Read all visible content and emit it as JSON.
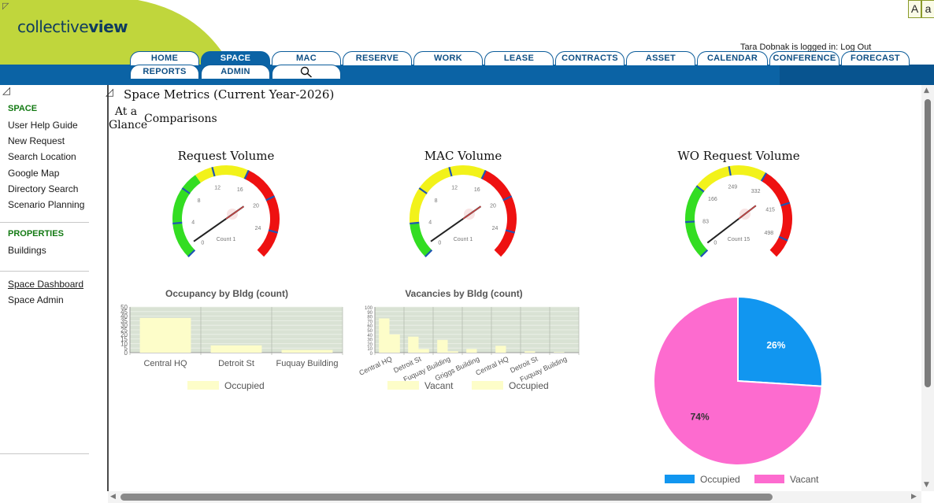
{
  "header": {
    "logo_light": "collective",
    "logo_bold": "view",
    "font_toggle": [
      "A",
      "a"
    ],
    "login_text": "Tara Dobnak is logged in:",
    "logout_label": "Log Out"
  },
  "nav": {
    "row1": [
      "HOME",
      "SPACE",
      "MAC",
      "RESERVE",
      "WORK",
      "LEASE",
      "CONTRACTS",
      "ASSET",
      "CALENDAR",
      "CONFERENCE",
      "FORECAST"
    ],
    "row2": [
      "REPORTS",
      "ADMIN"
    ],
    "active": "SPACE",
    "search_icon": "search-icon"
  },
  "sidebar": {
    "section1": "SPACE",
    "links1": [
      "User Help Guide",
      "New Request",
      "Search Location",
      "Google Map",
      "Directory Search",
      "Scenario Planning"
    ],
    "section2": "PROPERTIES",
    "links2": [
      "Buildings"
    ],
    "links3": [
      "Space Dashboard",
      "Space Admin"
    ]
  },
  "main": {
    "title": "Space Metrics (Current Year-2026)",
    "tabs": [
      "At a Glance",
      "Comparisons"
    ]
  },
  "gauges": [
    {
      "title": "Request Volume",
      "ticks": [
        "0",
        "4",
        "8",
        "12",
        "16",
        "20",
        "24"
      ],
      "max": 27,
      "value": 1,
      "readout": "Count 1",
      "bands": [
        {
          "from": 0,
          "to": 10,
          "color": "#33dd22"
        },
        {
          "from": 10,
          "to": 16,
          "color": "#f2f21a"
        },
        {
          "from": 16,
          "to": 27,
          "color": "#ee1111"
        }
      ]
    },
    {
      "title": "MAC Volume",
      "ticks": [
        "0",
        "4",
        "8",
        "12",
        "16",
        "20",
        "24"
      ],
      "max": 27,
      "value": 1,
      "readout": "Count 1",
      "bands": [
        {
          "from": 0,
          "to": 4,
          "color": "#33dd22"
        },
        {
          "from": 4,
          "to": 16,
          "color": "#f2f21a"
        },
        {
          "from": 16,
          "to": 27,
          "color": "#ee1111"
        }
      ]
    },
    {
      "title": "WO Request Volume",
      "ticks": [
        "0",
        "83",
        "166",
        "249",
        "332",
        "415",
        "498"
      ],
      "max": 540,
      "value": 15,
      "readout": "Count 15",
      "bands": [
        {
          "from": 0,
          "to": 166,
          "color": "#33dd22"
        },
        {
          "from": 166,
          "to": 332,
          "color": "#f2f21a"
        },
        {
          "from": 332,
          "to": 540,
          "color": "#ee1111"
        }
      ]
    }
  ],
  "chart_data": [
    {
      "type": "bar",
      "title": "Occupancy by Bldg (count)",
      "categories": [
        "Central HQ",
        "Detroit St",
        "Fuquay Building"
      ],
      "series": [
        {
          "name": "Occupied",
          "values": [
            38,
            8,
            3
          ]
        }
      ],
      "ylim": [
        0,
        50
      ],
      "yticks": [
        "0",
        "5",
        "10",
        "15",
        "20",
        "25",
        "30",
        "35",
        "40",
        "45",
        "50"
      ],
      "colors": {
        "Occupied": "#fdfdc9"
      }
    },
    {
      "type": "bar",
      "title": "Vacancies by Bldg (count)",
      "categories": [
        "Central HQ",
        "Detroit St",
        "Fuquay Building",
        "Griggs Building",
        "Central HQ",
        "Detroit St",
        "Fuquay Building"
      ],
      "series": [
        {
          "name": "Vacant",
          "values": [
            75,
            35,
            28,
            8,
            15,
            3,
            1
          ]
        },
        {
          "name": "Occupied",
          "values": [
            40,
            8,
            3,
            0,
            0,
            0,
            0
          ]
        }
      ],
      "ylim": [
        0,
        100
      ],
      "yticks": [
        "0",
        "10",
        "20",
        "30",
        "40",
        "50",
        "60",
        "70",
        "80",
        "90",
        "100"
      ],
      "colors": {
        "Vacant": "#fdfdc9",
        "Occupied": "#fdfdc9"
      }
    },
    {
      "type": "pie",
      "categories": [
        "Occupied",
        "Vacant"
      ],
      "values": [
        26,
        74
      ],
      "labels": [
        "26%",
        "74%"
      ],
      "colors": {
        "Occupied": "#1196f0",
        "Vacant": "#fd6bcf"
      }
    }
  ]
}
